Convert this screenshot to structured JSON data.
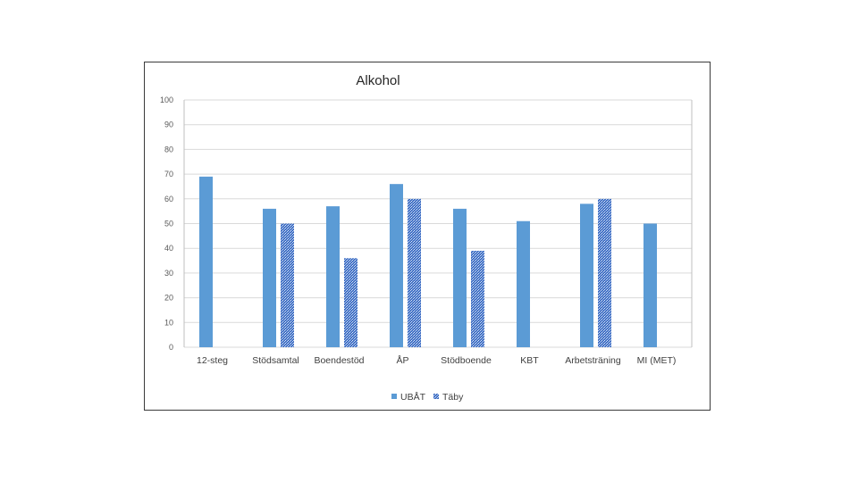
{
  "chart_data": {
    "type": "bar",
    "title": "Alkohol",
    "xlabel": "",
    "ylabel": "",
    "ylim": [
      0,
      100
    ],
    "yticks": [
      0,
      10,
      20,
      30,
      40,
      50,
      60,
      70,
      80,
      90,
      100
    ],
    "grid": true,
    "legend_position": "bottom",
    "categories": [
      "12-steg",
      "Stödsamtal",
      "Boendestöd",
      "ÅP",
      "Stödboende",
      "KBT",
      "Arbetsträning",
      "MI (MET)"
    ],
    "series": [
      {
        "name": "UBÅT",
        "color": "#5b9bd5",
        "pattern": "solid",
        "values": [
          69,
          56,
          57,
          66,
          56,
          51,
          58,
          50
        ]
      },
      {
        "name": "Täby",
        "color": "#4472c4",
        "pattern": "dotted",
        "values": [
          null,
          50,
          36,
          60,
          39,
          null,
          60,
          null
        ]
      }
    ]
  }
}
